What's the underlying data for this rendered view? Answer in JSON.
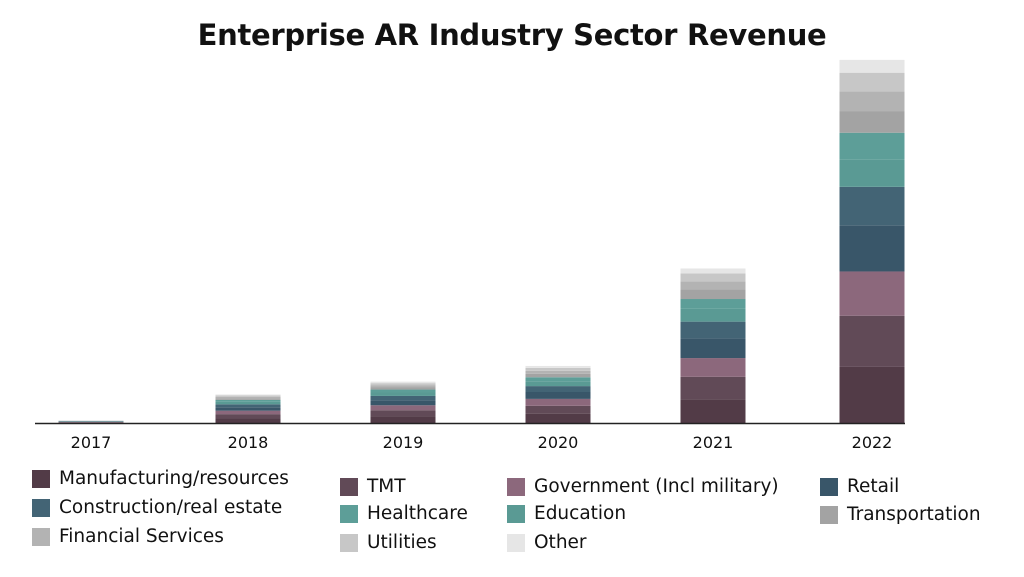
{
  "chart_data": {
    "type": "bar",
    "stacked": true,
    "title": "Enterprise AR Industry Sector Revenue",
    "xlabel": "",
    "ylabel": "",
    "y_axis_shown": false,
    "grid": false,
    "legend_position": "bottom",
    "categories": [
      "2017",
      "2018",
      "2019",
      "2020",
      "2021",
      "2022"
    ],
    "ylim": [
      0,
      375
    ],
    "series": [
      {
        "name": "Manufacturing/resources",
        "color": "#523b47",
        "values": [
          0.4,
          5,
          7,
          9.5,
          24,
          57
        ]
      },
      {
        "name": "TMT",
        "color": "#614a57",
        "values": [
          0.4,
          4,
          6,
          8,
          23,
          52
        ]
      },
      {
        "name": "Government (Incl military)",
        "color": "#8c687c",
        "values": [
          0.3,
          3.5,
          5,
          7,
          19,
          45
        ]
      },
      {
        "name": "Retail",
        "color": "#395669",
        "values": [
          0.3,
          3.5,
          5,
          7,
          20,
          47
        ]
      },
      {
        "name": "Construction/real estate",
        "color": "#436475",
        "values": [
          0.3,
          3,
          4.5,
          6,
          17,
          39
        ]
      },
      {
        "name": "Education",
        "color": "#5a9a94",
        "values": [
          0.2,
          2.5,
          3.5,
          5,
          13,
          28
        ]
      },
      {
        "name": "Healthcare",
        "color": "#5d9e98",
        "values": [
          0.2,
          2,
          3,
          4,
          10,
          27
        ]
      },
      {
        "name": "Transportation",
        "color": "#a3a3a3",
        "values": [
          0.1,
          1.5,
          2.5,
          3.5,
          10,
          22
        ]
      },
      {
        "name": "Financial Services",
        "color": "#b3b3b3",
        "values": [
          0.1,
          1.5,
          2,
          3,
          8,
          20
        ]
      },
      {
        "name": "Utilities",
        "color": "#c7c7c7",
        "values": [
          0.1,
          1.5,
          2,
          3,
          8,
          19
        ]
      },
      {
        "name": "Other",
        "color": "#e6e6e6",
        "values": [
          0.1,
          1,
          1.5,
          2,
          5,
          13
        ]
      }
    ]
  },
  "legend_layout": [
    [
      "Manufacturing/resources",
      "Construction/real estate",
      "Financial Services"
    ],
    [
      "TMT",
      "Healthcare",
      "Utilities"
    ],
    [
      "Government (Incl military)",
      "Education",
      "Other"
    ],
    [
      "Retail",
      "Transportation"
    ]
  ]
}
